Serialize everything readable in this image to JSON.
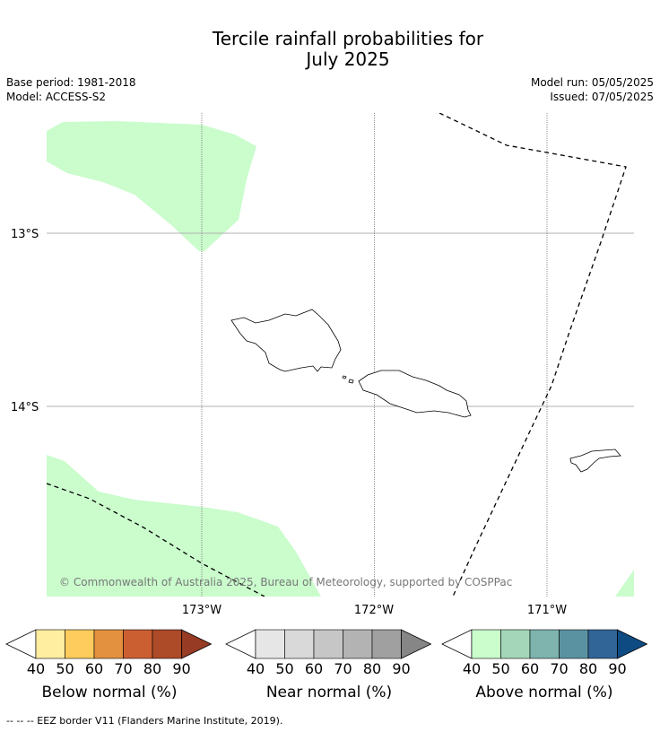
{
  "title": {
    "line1": "Tercile rainfall probabilities for",
    "line2": "July 2025"
  },
  "meta": {
    "base_period": "Base period: 1981-2018",
    "model": "Model: ACCESS-S2",
    "model_run": "Model run: 05/05/2025",
    "issued": "Issued: 07/05/2025"
  },
  "map": {
    "lat_labels": [
      "13°S",
      "14°S"
    ],
    "lon_labels": [
      "173°W",
      "172°W",
      "171°W"
    ],
    "copyright": "© Commonwealth of Australia 2025, Bureau of Meteorology, supported by COSPPac"
  },
  "legends": [
    {
      "title": "Below normal (%)",
      "ticks": [
        "40",
        "50",
        "60",
        "70",
        "80",
        "90"
      ],
      "colors": [
        "#ffeda0",
        "#fecc5c",
        "#e3913f",
        "#cc5f31",
        "#ad4a28",
        "#973b25"
      ]
    },
    {
      "title": "Near normal (%)",
      "ticks": [
        "40",
        "50",
        "60",
        "70",
        "80",
        "90"
      ],
      "colors": [
        "#e6e6e6",
        "#d9d9d9",
        "#c6c6c6",
        "#b3b3b3",
        "#a0a0a0",
        "#868686"
      ]
    },
    {
      "title": "Above normal (%)",
      "ticks": [
        "40",
        "50",
        "60",
        "70",
        "80",
        "90"
      ],
      "colors": [
        "#cafccc",
        "#a4d7ba",
        "#7eb3ae",
        "#5a92a2",
        "#316597",
        "#0f4b83"
      ]
    }
  ],
  "footer": "--  --  -- EEZ border V11 (Flanders Marine Institute, 2019).",
  "colors": {
    "above_normal_fill": "#cafccc",
    "gridline": "#999999"
  }
}
